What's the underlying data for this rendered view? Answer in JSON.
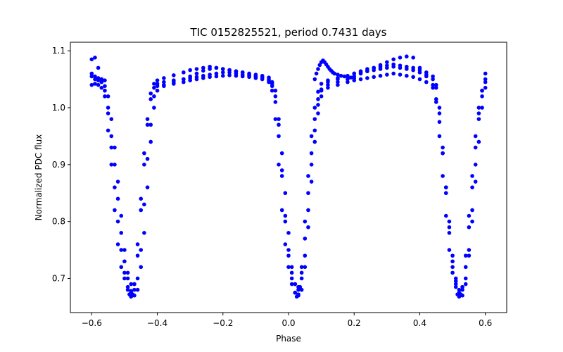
{
  "chart_data": {
    "type": "scatter",
    "title": "TIC 0152825521, period 0.7431 days",
    "xlabel": "Phase",
    "ylabel": "Normalized PDC flux",
    "xlim": [
      -0.665,
      0.665
    ],
    "ylim": [
      0.64,
      1.115
    ],
    "xticks": [
      -0.6,
      -0.4,
      -0.2,
      0.0,
      0.2,
      0.4,
      0.6
    ],
    "xtick_labels": [
      "−0.6",
      "−0.4",
      "−0.2",
      "0.0",
      "0.2",
      "0.4",
      "0.6"
    ],
    "yticks": [
      0.7,
      0.8,
      0.9,
      1.0,
      1.1
    ],
    "ytick_labels": [
      "0.7",
      "0.8",
      "0.9",
      "1.0",
      "1.1"
    ],
    "grid": false,
    "legend": "none",
    "marker_color": "#0000ff",
    "series": [
      {
        "x": [
          -0.6,
          -0.59,
          -0.58,
          -0.57,
          -0.56,
          -0.55,
          -0.54,
          -0.53,
          -0.52,
          -0.51,
          -0.5,
          -0.49,
          -0.485,
          -0.48,
          -0.475,
          -0.47,
          -0.46,
          -0.45,
          -0.44,
          -0.43,
          -0.42,
          -0.41,
          -0.4,
          -0.38,
          -0.35,
          -0.32,
          -0.3,
          -0.28,
          -0.26,
          -0.24,
          -0.22,
          -0.2,
          -0.18,
          -0.16,
          -0.14,
          -0.12,
          -0.1,
          -0.08,
          -0.06,
          -0.05,
          -0.04,
          -0.03,
          -0.02,
          -0.01,
          0.0,
          0.01,
          0.02,
          0.025,
          0.03,
          0.035,
          0.04,
          0.05,
          0.06,
          0.07,
          0.08,
          0.09,
          0.1,
          0.12,
          0.15,
          0.18,
          0.2,
          0.22,
          0.24,
          0.26,
          0.28,
          0.3,
          0.32,
          0.34,
          0.36,
          0.38,
          0.4,
          0.42,
          0.44,
          0.45,
          0.46,
          0.47,
          0.48,
          0.49,
          0.5,
          0.51,
          0.515,
          0.52,
          0.525,
          0.53,
          0.54,
          0.55,
          0.56,
          0.57,
          0.58,
          0.59,
          0.6
        ],
        "y": [
          1.055,
          1.05,
          1.048,
          1.045,
          1.038,
          1.0,
          0.93,
          0.86,
          0.8,
          0.75,
          0.71,
          0.685,
          0.672,
          0.668,
          0.672,
          0.69,
          0.76,
          0.84,
          0.92,
          0.98,
          1.025,
          1.042,
          1.048,
          1.052,
          1.057,
          1.062,
          1.066,
          1.068,
          1.07,
          1.072,
          1.07,
          1.068,
          1.066,
          1.064,
          1.062,
          1.06,
          1.058,
          1.056,
          1.053,
          1.045,
          1.01,
          0.95,
          0.88,
          0.8,
          0.74,
          0.7,
          0.675,
          0.668,
          0.67,
          0.685,
          0.72,
          0.8,
          0.88,
          0.95,
          1.0,
          1.028,
          1.042,
          1.048,
          1.052,
          1.056,
          1.06,
          1.062,
          1.064,
          1.066,
          1.068,
          1.07,
          1.072,
          1.07,
          1.068,
          1.066,
          1.062,
          1.058,
          1.05,
          1.035,
          0.99,
          0.92,
          0.85,
          0.78,
          0.72,
          0.685,
          0.672,
          0.668,
          0.672,
          0.685,
          0.74,
          0.81,
          0.88,
          0.95,
          1.0,
          1.03,
          1.045
        ]
      },
      {
        "x": [
          -0.6,
          -0.59,
          -0.58,
          -0.57,
          -0.56,
          -0.55,
          -0.54,
          -0.53,
          -0.52,
          -0.51,
          -0.5,
          -0.49,
          -0.48,
          -0.47,
          -0.46,
          -0.45,
          -0.44,
          -0.43,
          -0.42,
          -0.41,
          -0.4,
          -0.38,
          -0.35,
          -0.32,
          -0.3,
          -0.28,
          -0.26,
          -0.24,
          -0.22,
          -0.2,
          -0.18,
          -0.16,
          -0.14,
          -0.12,
          -0.1,
          -0.08,
          -0.06,
          -0.05,
          -0.04,
          -0.03,
          -0.02,
          -0.01,
          0.0,
          0.01,
          0.02,
          0.03,
          0.04,
          0.05,
          0.06,
          0.07,
          0.08,
          0.09,
          0.1,
          0.12,
          0.15,
          0.18,
          0.2,
          0.22,
          0.24,
          0.26,
          0.28,
          0.3,
          0.32,
          0.34,
          0.36,
          0.38,
          0.4,
          0.42,
          0.44,
          0.45,
          0.46,
          0.47,
          0.48,
          0.49,
          0.5,
          0.51,
          0.52,
          0.53,
          0.54,
          0.55,
          0.56,
          0.57,
          0.58,
          0.59,
          0.6
        ],
        "y": [
          1.085,
          1.088,
          1.07,
          1.05,
          1.03,
          0.96,
          0.9,
          0.82,
          0.76,
          0.72,
          0.7,
          0.68,
          0.675,
          0.69,
          0.74,
          0.82,
          0.9,
          0.97,
          1.015,
          1.035,
          1.042,
          1.045,
          1.048,
          1.05,
          1.052,
          1.054,
          1.056,
          1.058,
          1.06,
          1.062,
          1.062,
          1.06,
          1.058,
          1.056,
          1.055,
          1.054,
          1.05,
          1.03,
          0.98,
          0.9,
          0.82,
          0.76,
          0.72,
          0.69,
          0.675,
          0.68,
          0.71,
          0.77,
          0.85,
          0.92,
          0.98,
          1.015,
          1.032,
          1.04,
          1.045,
          1.05,
          1.055,
          1.06,
          1.065,
          1.07,
          1.075,
          1.08,
          1.085,
          1.088,
          1.09,
          1.088,
          1.07,
          1.055,
          1.04,
          1.01,
          0.95,
          0.88,
          0.81,
          0.75,
          0.71,
          0.69,
          0.675,
          0.68,
          0.7,
          0.75,
          0.82,
          0.9,
          0.98,
          1.03,
          1.06
        ]
      },
      {
        "x": [
          -0.6,
          -0.59,
          -0.58,
          -0.57,
          -0.56,
          -0.55,
          -0.54,
          -0.53,
          -0.52,
          -0.51,
          -0.5,
          -0.49,
          -0.48,
          -0.47,
          -0.46,
          -0.45,
          -0.44,
          -0.43,
          -0.42,
          -0.41,
          -0.4,
          -0.38,
          -0.35,
          -0.32,
          -0.3,
          -0.28,
          -0.26,
          -0.24,
          -0.22,
          -0.2,
          -0.18,
          -0.16,
          -0.14,
          -0.12,
          -0.1,
          -0.08,
          -0.06,
          -0.05,
          -0.04,
          -0.03,
          -0.02,
          -0.01,
          0.0,
          0.01,
          0.02,
          0.03,
          0.04,
          0.05,
          0.06,
          0.07,
          0.08,
          0.09,
          0.1,
          0.12,
          0.15,
          0.18,
          0.2,
          0.22,
          0.24,
          0.26,
          0.28,
          0.3,
          0.32,
          0.34,
          0.36,
          0.38,
          0.4,
          0.42,
          0.44,
          0.45,
          0.46,
          0.47,
          0.48,
          0.49,
          0.5,
          0.51,
          0.52,
          0.53,
          0.54,
          0.55,
          0.56,
          0.57,
          0.58,
          0.59,
          0.6
        ],
        "y": [
          1.04,
          1.042,
          1.04,
          1.035,
          1.02,
          0.99,
          0.95,
          0.9,
          0.84,
          0.78,
          0.73,
          0.7,
          0.678,
          0.67,
          0.68,
          0.72,
          0.78,
          0.86,
          0.94,
          1.0,
          1.03,
          1.038,
          1.042,
          1.045,
          1.048,
          1.05,
          1.052,
          1.054,
          1.055,
          1.056,
          1.057,
          1.056,
          1.055,
          1.054,
          1.052,
          1.05,
          1.045,
          1.038,
          1.02,
          0.98,
          0.92,
          0.85,
          0.78,
          0.72,
          0.69,
          0.672,
          0.68,
          0.72,
          0.79,
          0.87,
          0.94,
          0.99,
          1.02,
          1.035,
          1.04,
          1.045,
          1.048,
          1.05,
          1.052,
          1.054,
          1.056,
          1.058,
          1.06,
          1.058,
          1.056,
          1.054,
          1.05,
          1.045,
          1.035,
          1.015,
          0.975,
          0.92,
          0.86,
          0.8,
          0.74,
          0.7,
          0.672,
          0.67,
          0.69,
          0.74,
          0.8,
          0.87,
          0.94,
          1.0,
          1.035
        ]
      },
      {
        "x": [
          -0.6,
          -0.59,
          -0.58,
          -0.57,
          -0.56,
          -0.55,
          -0.54,
          -0.53,
          -0.52,
          -0.51,
          -0.5,
          -0.49,
          -0.48,
          -0.47,
          -0.46,
          -0.45,
          -0.44,
          -0.43,
          -0.42,
          -0.41,
          -0.4,
          -0.38,
          -0.35,
          -0.32,
          -0.3,
          -0.28,
          -0.26,
          -0.24,
          -0.22,
          -0.2,
          -0.18,
          -0.16,
          -0.14,
          -0.12,
          -0.1,
          -0.08,
          -0.06,
          -0.05,
          -0.04,
          -0.03,
          -0.02,
          -0.01,
          0.0,
          0.01,
          0.02,
          0.03,
          0.04,
          0.05,
          0.06,
          0.07,
          0.08,
          0.09,
          0.1,
          0.12,
          0.15,
          0.18,
          0.2,
          0.22,
          0.24,
          0.26,
          0.28,
          0.3,
          0.32,
          0.34,
          0.36,
          0.38,
          0.4,
          0.42,
          0.44,
          0.45,
          0.46,
          0.47,
          0.48,
          0.49,
          0.5,
          0.51,
          0.52,
          0.53,
          0.54,
          0.55,
          0.56,
          0.57,
          0.58,
          0.59,
          0.6
        ],
        "y": [
          1.06,
          1.055,
          1.052,
          1.05,
          1.048,
          1.02,
          0.98,
          0.93,
          0.87,
          0.81,
          0.75,
          0.71,
          0.69,
          0.68,
          0.7,
          0.75,
          0.83,
          0.91,
          0.97,
          1.02,
          1.038,
          1.04,
          1.045,
          1.05,
          1.055,
          1.06,
          1.065,
          1.068,
          1.07,
          1.068,
          1.066,
          1.064,
          1.062,
          1.058,
          1.055,
          1.052,
          1.048,
          1.042,
          1.03,
          0.97,
          0.89,
          0.81,
          0.75,
          0.71,
          0.69,
          0.685,
          0.7,
          0.74,
          0.82,
          0.9,
          0.96,
          1.005,
          1.03,
          1.045,
          1.05,
          1.055,
          1.06,
          1.064,
          1.068,
          1.07,
          1.072,
          1.074,
          1.076,
          1.074,
          1.072,
          1.07,
          1.066,
          1.062,
          1.055,
          1.04,
          1.0,
          0.93,
          0.86,
          0.79,
          0.73,
          0.695,
          0.68,
          0.685,
          0.72,
          0.79,
          0.86,
          0.93,
          0.99,
          1.02,
          1.05
        ]
      },
      {
        "x": [
          0.08,
          0.085,
          0.09,
          0.095,
          0.1,
          0.105,
          0.11,
          0.115,
          0.12,
          0.125,
          0.13,
          0.135,
          0.14,
          0.15,
          0.16,
          0.17,
          0.18,
          0.19,
          0.2
        ],
        "y": [
          1.05,
          1.06,
          1.068,
          1.075,
          1.08,
          1.083,
          1.08,
          1.076,
          1.072,
          1.068,
          1.065,
          1.062,
          1.06,
          1.058,
          1.056,
          1.055,
          1.054,
          1.053,
          1.052
        ]
      }
    ]
  }
}
